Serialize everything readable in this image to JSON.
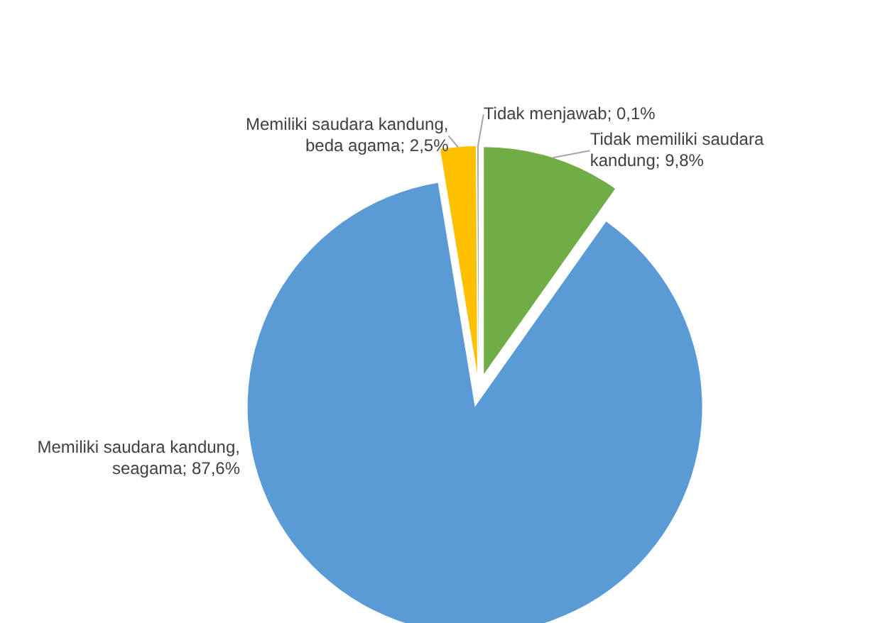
{
  "chart_data": {
    "type": "pie",
    "categories": [
      "Tidak memiliki saudara kandung",
      "Memiliki saudara kandung, seagama",
      "Memiliki saudara kandung, beda agama",
      "Tidak menjawab"
    ],
    "values": [
      9.8,
      87.6,
      2.5,
      0.1
    ],
    "colors": [
      "#70ad47",
      "#5b9bd5",
      "#ffc000",
      "#a5a5a5"
    ],
    "value_labels": [
      "9,8%",
      "87,6%",
      "2,5%",
      "0,1%"
    ]
  }
}
